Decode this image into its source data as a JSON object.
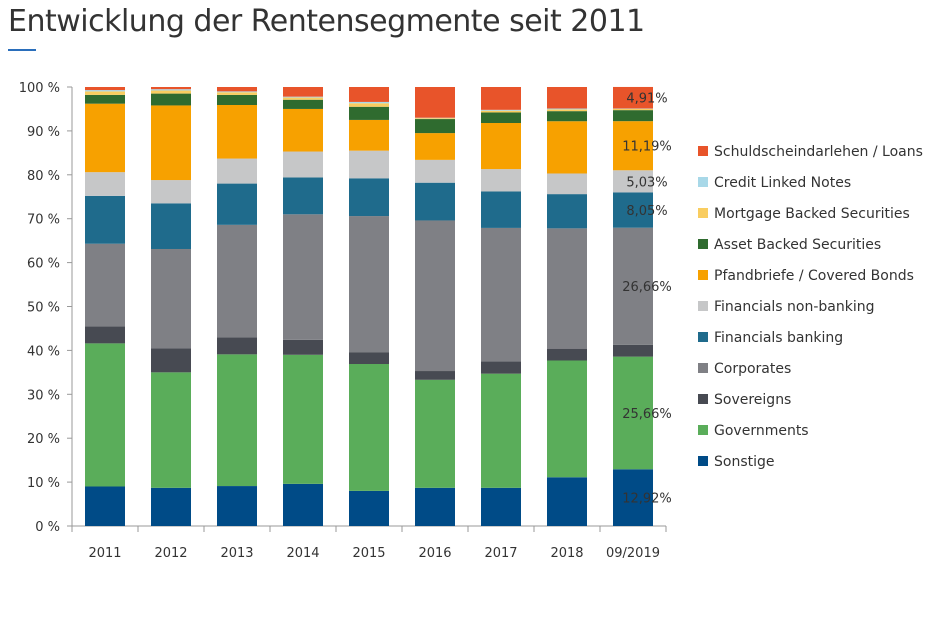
{
  "header": {
    "title": "Entwicklung der Rentensegmente seit 2011"
  },
  "chart_data": {
    "type": "bar",
    "stacked": true,
    "percent": true,
    "categories": [
      "2011",
      "2012",
      "2013",
      "2014",
      "2015",
      "2016",
      "2017",
      "2018",
      "09/2019"
    ],
    "ylim": [
      0,
      100
    ],
    "yticks": [
      0,
      10,
      20,
      30,
      40,
      50,
      60,
      70,
      80,
      90,
      100
    ],
    "ytick_labels": [
      "0 %",
      "10 %",
      "20 %",
      "30 %",
      "40 %",
      "50 %",
      "60 %",
      "70 %",
      "80 %",
      "90 %",
      "100 %"
    ],
    "grid": false,
    "legend_position": "right",
    "series": [
      {
        "name": "Sonstige",
        "color": "#004b87",
        "values": [
          9.0,
          8.7,
          9.1,
          9.6,
          8.0,
          8.7,
          8.7,
          11.1,
          12.92
        ]
      },
      {
        "name": "Governments",
        "color": "#5aad5a",
        "values": [
          32.6,
          26.3,
          30.0,
          29.4,
          28.9,
          24.6,
          26.0,
          26.6,
          25.66
        ]
      },
      {
        "name": "Sovereigns",
        "color": "#474a52",
        "values": [
          3.9,
          5.5,
          3.9,
          3.4,
          2.7,
          2.0,
          2.8,
          2.7,
          2.71
        ]
      },
      {
        "name": "Corporates",
        "color": "#7f8085",
        "values": [
          18.8,
          22.6,
          25.6,
          28.6,
          31.0,
          34.3,
          30.4,
          27.4,
          26.66
        ]
      },
      {
        "name": "Financials banking",
        "color": "#1f6b8c",
        "values": [
          10.9,
          10.4,
          9.4,
          8.4,
          8.6,
          8.6,
          8.3,
          7.8,
          8.05
        ]
      },
      {
        "name": "Financials non-banking",
        "color": "#c6c7c8",
        "values": [
          5.4,
          5.3,
          5.7,
          5.9,
          6.3,
          5.2,
          5.1,
          4.7,
          5.03
        ]
      },
      {
        "name": "Pfandbriefe / Covered Bonds",
        "color": "#f7a100",
        "values": [
          15.6,
          17.0,
          12.2,
          9.7,
          7.0,
          6.1,
          10.5,
          11.9,
          11.19
        ]
      },
      {
        "name": "Asset Backed Securities",
        "color": "#2f6b2f",
        "values": [
          2.0,
          2.7,
          2.3,
          2.1,
          3.0,
          3.2,
          2.4,
          2.3,
          2.51
        ]
      },
      {
        "name": "Mortgage Backed Securities",
        "color": "#f9cd60",
        "values": [
          0.8,
          0.7,
          0.6,
          0.5,
          0.8,
          0.2,
          0.4,
          0.4,
          0.3
        ]
      },
      {
        "name": "Credit Linked Notes",
        "color": "#a8d8e8",
        "values": [
          0.3,
          0.3,
          0.2,
          0.2,
          0.3,
          0.1,
          0.2,
          0.2,
          0.07
        ]
      },
      {
        "name": "Schuldscheindarlehen / Loans",
        "color": "#e8542a",
        "values": [
          0.7,
          0.5,
          1.0,
          2.2,
          3.4,
          7.0,
          5.2,
          4.9,
          4.91
        ]
      }
    ],
    "annotations": [
      {
        "category": "09/2019",
        "series": "Schuldscheindarlehen / Loans",
        "text": "4,91%"
      },
      {
        "category": "09/2019",
        "series": "Pfandbriefe / Covered Bonds",
        "text": "11,19%"
      },
      {
        "category": "09/2019",
        "series": "Financials non-banking",
        "text": "5,03%"
      },
      {
        "category": "09/2019",
        "series": "Financials banking",
        "text": "8,05%"
      },
      {
        "category": "09/2019",
        "series": "Corporates",
        "text": "26,66%"
      },
      {
        "category": "09/2019",
        "series": "Governments",
        "text": "25,66%"
      },
      {
        "category": "09/2019",
        "series": "Sonstige",
        "text": "12,92%"
      }
    ]
  }
}
